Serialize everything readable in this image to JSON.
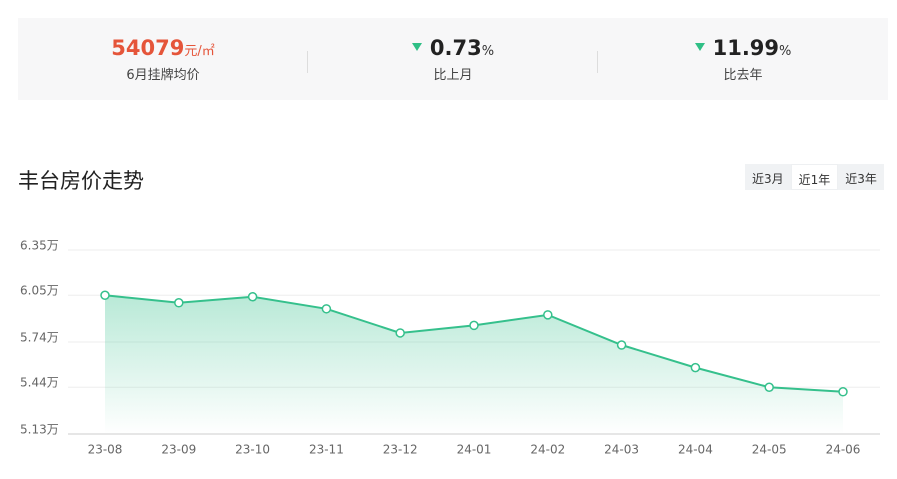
{
  "stats": [
    {
      "value": "54079",
      "unit": "元/㎡",
      "label": "6月挂牌均价"
    },
    {
      "value": "0.73",
      "unit": "%",
      "label": "比上月"
    },
    {
      "value": "11.99",
      "unit": "%",
      "label": "比去年"
    }
  ],
  "tabs": [
    "近3月",
    "近1年",
    "近3年"
  ],
  "chart_data": {
    "type": "line",
    "title": "丰台房价走势",
    "categories": [
      "23-08",
      "23-09",
      "23-10",
      "23-11",
      "23-12",
      "24-01",
      "24-02",
      "24-03",
      "24-04",
      "24-05",
      "24-06"
    ],
    "series": [
      {
        "name": "丰台",
        "color": "#35c08c",
        "values": [
          6.05,
          6.0,
          6.04,
          5.96,
          5.8,
          5.85,
          5.92,
          5.72,
          5.57,
          5.44,
          5.41
        ]
      }
    ],
    "ylim": [
      5.13,
      6.35
    ],
    "yticks": [
      {
        "value": 5.13,
        "label": "5.13万"
      },
      {
        "value": 5.44,
        "label": "5.44万"
      },
      {
        "value": 5.74,
        "label": "5.74万"
      },
      {
        "value": 6.05,
        "label": "6.05万"
      },
      {
        "value": 6.35,
        "label": "6.35万"
      }
    ],
    "grid": true,
    "area": true
  }
}
